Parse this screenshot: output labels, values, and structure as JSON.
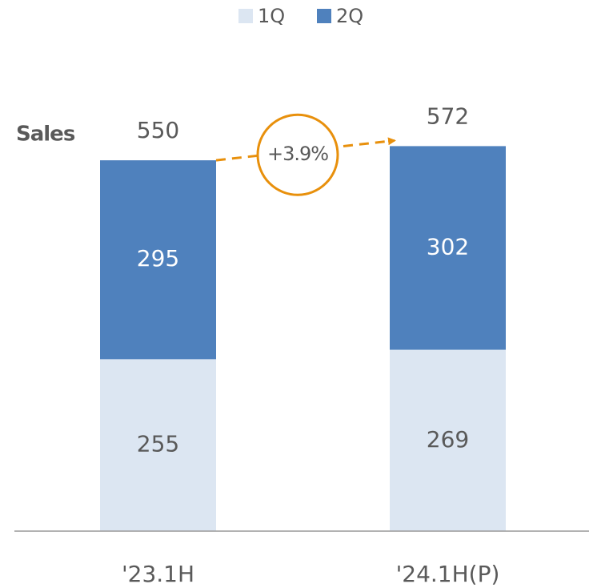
{
  "chart_data": {
    "type": "stacked_bar",
    "ylabel": "Sales",
    "categories": [
      "'23.1H",
      "'24.1H(P)"
    ],
    "series": [
      {
        "name": "1Q",
        "color": "#dce6f2",
        "values": [
          255,
          269
        ]
      },
      {
        "name": "2Q",
        "color": "#4f81bd",
        "values": [
          295,
          302
        ]
      }
    ],
    "totals": [
      550,
      572
    ],
    "annotation": "+3.9%",
    "annotation_color": "#e8900c",
    "ylim": [
      0,
      600
    ]
  }
}
